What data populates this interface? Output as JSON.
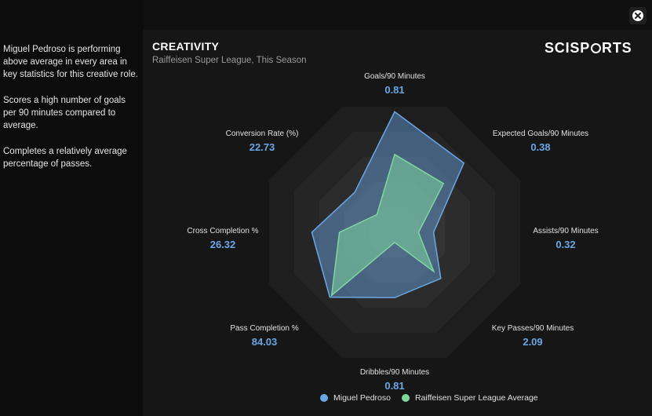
{
  "description": [
    "Miguel Pedroso is performing above average in every area in key statistics for this creative role.",
    "Scores a high number of goals per 90 minutes compared to average.",
    "Completes a relatively average percentage of passes."
  ],
  "header": {
    "title": "CREATIVITY",
    "subtitle": "Raiffeisen Super League, This Season",
    "brand_left": "SCISP",
    "brand_right": "RTS"
  },
  "colors": {
    "player": "#6aa7e6",
    "average": "#7fd7a0",
    "value_text": "#6aa7e6"
  },
  "chart_data": {
    "type": "radar",
    "axes": [
      {
        "label": "Goals/90 Minutes",
        "value": "0.81"
      },
      {
        "label": "Expected Goals/90 Minutes",
        "value": "0.38"
      },
      {
        "label": "Assists/90 Minutes",
        "value": "0.32"
      },
      {
        "label": "Key Passes/90 Minutes",
        "value": "2.09"
      },
      {
        "label": "Dribbles/90 Minutes",
        "value": "0.81"
      },
      {
        "label": "Pass Completion %",
        "value": "84.03"
      },
      {
        "label": "Cross Completion %",
        "value": "26.32"
      },
      {
        "label": "Conversion Rate (%)",
        "value": "22.73"
      }
    ],
    "rings": 5,
    "series": [
      {
        "name": "Miguel Pedroso",
        "values": [
          0.96,
          0.78,
          0.31,
          0.52,
          0.52,
          0.73,
          0.66,
          0.45
        ]
      },
      {
        "name": "Raiffeisen Super League Average",
        "values": [
          0.62,
          0.55,
          0.19,
          0.44,
          0.08,
          0.71,
          0.44,
          0.2
        ]
      }
    ]
  }
}
